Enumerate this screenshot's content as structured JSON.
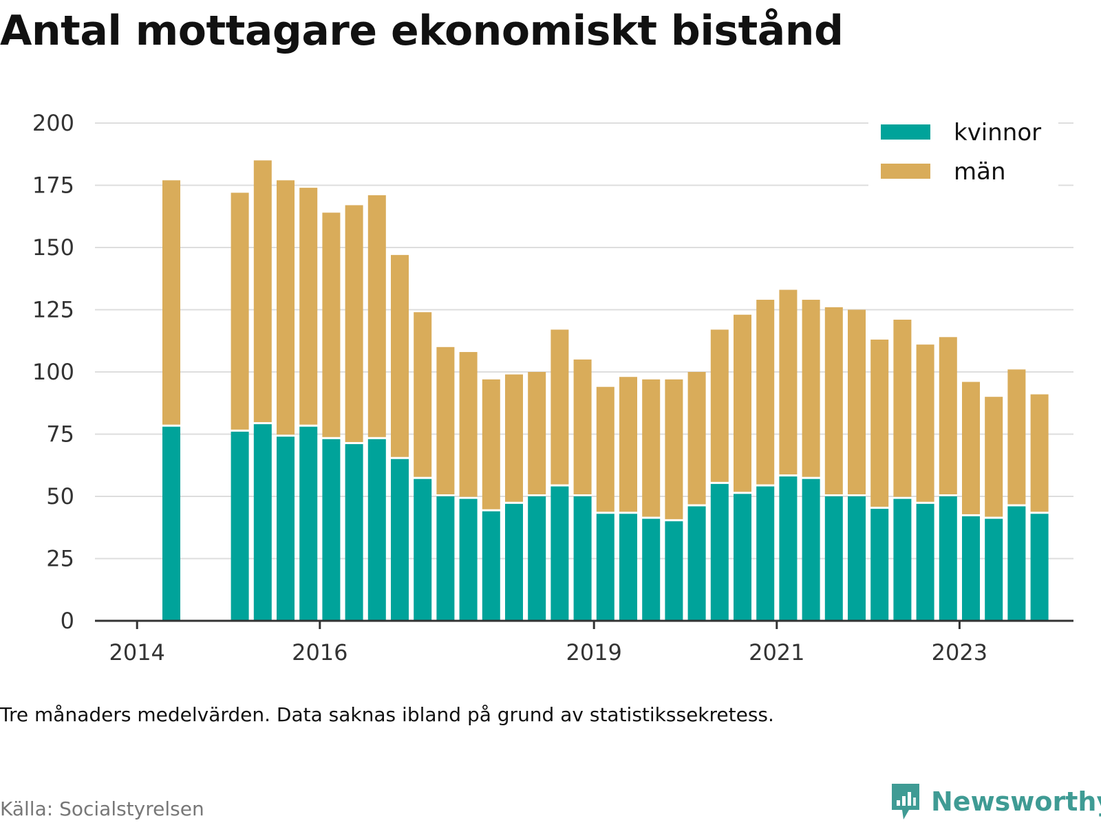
{
  "title": "Antal mottagare ekonomiskt bistånd",
  "note": "Tre månaders medelvärden. Data saknas ibland på grund av statistikssekretess.",
  "source": "Källa: Socialstyrelsen",
  "brand": {
    "name": "Newsworthy",
    "icon": "newsworthy-logo-icon"
  },
  "colors": {
    "kvinnor": "#00a39a",
    "man": "#d9ac5a",
    "grid": "#dddddd",
    "axis": "#333333",
    "text": "#111111"
  },
  "chart_data": {
    "type": "bar",
    "stacked": true,
    "title": "Antal mottagare ekonomiskt bistånd",
    "ylim": [
      0,
      200
    ],
    "y_ticks": [
      "0",
      "25",
      "50",
      "75",
      "100",
      "125",
      "150",
      "175",
      "200"
    ],
    "x_tick_labels": [
      "2014",
      "2016",
      "2019",
      "2021",
      "2023"
    ],
    "legend_position": "top-right",
    "grid": true,
    "bars": [
      {
        "period": "2014 Q2",
        "kvinnor": 78,
        "man": 99
      },
      {
        "period": "2015 Q1",
        "kvinnor": 76,
        "man": 96
      },
      {
        "period": "2015 Q2",
        "kvinnor": 79,
        "man": 106
      },
      {
        "period": "2015 Q3",
        "kvinnor": 74,
        "man": 103
      },
      {
        "period": "2015 Q4",
        "kvinnor": 78,
        "man": 96
      },
      {
        "period": "2016 Q1",
        "kvinnor": 73,
        "man": 91
      },
      {
        "period": "2016 Q2",
        "kvinnor": 71,
        "man": 96
      },
      {
        "period": "2016 Q3",
        "kvinnor": 73,
        "man": 98
      },
      {
        "period": "2016 Q4",
        "kvinnor": 65,
        "man": 82
      },
      {
        "period": "2017 Q1",
        "kvinnor": 57,
        "man": 67
      },
      {
        "period": "2017 Q2",
        "kvinnor": 50,
        "man": 60
      },
      {
        "period": "2017 Q3",
        "kvinnor": 49,
        "man": 59
      },
      {
        "period": "2017 Q4",
        "kvinnor": 44,
        "man": 53
      },
      {
        "period": "2018 Q1",
        "kvinnor": 47,
        "man": 52
      },
      {
        "period": "2018 Q2",
        "kvinnor": 50,
        "man": 50
      },
      {
        "period": "2018 Q3",
        "kvinnor": 54,
        "man": 63
      },
      {
        "period": "2018 Q4",
        "kvinnor": 50,
        "man": 55
      },
      {
        "period": "2019 Q1",
        "kvinnor": 43,
        "man": 51
      },
      {
        "period": "2019 Q2",
        "kvinnor": 43,
        "man": 55
      },
      {
        "period": "2019 Q3",
        "kvinnor": 41,
        "man": 56
      },
      {
        "period": "2019 Q4",
        "kvinnor": 40,
        "man": 57
      },
      {
        "period": "2020 Q1",
        "kvinnor": 46,
        "man": 54
      },
      {
        "period": "2020 Q2",
        "kvinnor": 55,
        "man": 62
      },
      {
        "period": "2020 Q3",
        "kvinnor": 51,
        "man": 72
      },
      {
        "period": "2020 Q4",
        "kvinnor": 54,
        "man": 75
      },
      {
        "period": "2021 Q1",
        "kvinnor": 58,
        "man": 75
      },
      {
        "period": "2021 Q2",
        "kvinnor": 57,
        "man": 72
      },
      {
        "period": "2021 Q3",
        "kvinnor": 50,
        "man": 76
      },
      {
        "period": "2021 Q4",
        "kvinnor": 50,
        "man": 75
      },
      {
        "period": "2022 Q1",
        "kvinnor": 45,
        "man": 68
      },
      {
        "period": "2022 Q2",
        "kvinnor": 49,
        "man": 72
      },
      {
        "period": "2022 Q3",
        "kvinnor": 47,
        "man": 64
      },
      {
        "period": "2022 Q4",
        "kvinnor": 50,
        "man": 64
      },
      {
        "period": "2023 Q1",
        "kvinnor": 42,
        "man": 54
      },
      {
        "period": "2023 Q2",
        "kvinnor": 41,
        "man": 49
      },
      {
        "period": "2023 Q3",
        "kvinnor": 46,
        "man": 55
      },
      {
        "period": "2023 Q4",
        "kvinnor": 43,
        "man": 48
      }
    ],
    "series": [
      {
        "key": "kvinnor",
        "name": "kvinnor",
        "color": "#00a39a"
      },
      {
        "key": "man",
        "name": "män",
        "color": "#d9ac5a"
      }
    ]
  }
}
